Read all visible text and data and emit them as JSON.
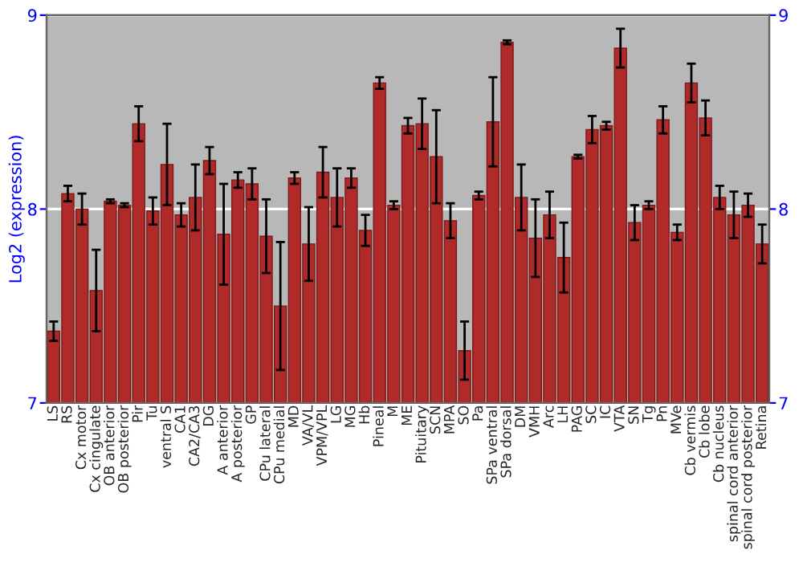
{
  "chart_data": {
    "type": "bar",
    "ylabel": "Log2 (expression)",
    "categories": [
      "LS",
      "RS",
      "Cx motor",
      "Cx cingulate",
      "OB anterior",
      "OB posterior",
      "Pir",
      "Tu",
      "ventral S",
      "CA1",
      "CA2/CA3",
      "DG",
      "A anterior",
      "A posterior",
      "GP",
      "CPu lateral",
      "CPu medial",
      "MD",
      "VA/VL",
      "VPM/VPL",
      "LG",
      "MG",
      "Hb",
      "Pineal",
      "M",
      "ME",
      "Pituitary",
      "SCN",
      "MPA",
      "SO",
      "Pa",
      "SPa ventral",
      "SPa dorsal",
      "DM",
      "VMH",
      "Arc",
      "LH",
      "PAG",
      "SC",
      "IC",
      "VTA",
      "SN",
      "Tg",
      "Pn",
      "MVe",
      "Cb vermis",
      "Cb lobe",
      "Cb nucleus",
      "spinal cord anterior",
      "spinal cord posterior",
      "Retina"
    ],
    "values": [
      7.37,
      8.08,
      8.0,
      7.58,
      8.04,
      8.02,
      8.44,
      7.99,
      8.23,
      7.97,
      8.06,
      8.25,
      7.87,
      8.15,
      8.13,
      7.86,
      7.5,
      8.16,
      7.82,
      8.19,
      8.06,
      8.16,
      7.89,
      8.65,
      8.02,
      8.43,
      8.44,
      8.27,
      7.94,
      7.27,
      8.07,
      8.45,
      8.86,
      8.06,
      7.85,
      7.97,
      7.75,
      8.27,
      8.41,
      8.43,
      8.83,
      7.93,
      8.02,
      8.46,
      7.88,
      8.65,
      8.47,
      8.06,
      7.97,
      8.02,
      7.82
    ],
    "errors": [
      0.05,
      0.04,
      0.08,
      0.21,
      0.01,
      0.01,
      0.09,
      0.07,
      0.21,
      0.06,
      0.17,
      0.07,
      0.26,
      0.04,
      0.08,
      0.19,
      0.33,
      0.03,
      0.19,
      0.13,
      0.15,
      0.05,
      0.08,
      0.03,
      0.02,
      0.04,
      0.13,
      0.24,
      0.09,
      0.15,
      0.02,
      0.23,
      0.01,
      0.17,
      0.2,
      0.12,
      0.18,
      0.01,
      0.07,
      0.02,
      0.1,
      0.09,
      0.02,
      0.07,
      0.04,
      0.1,
      0.09,
      0.06,
      0.12,
      0.06,
      0.1
    ],
    "color": "#b02a2a",
    "ylim": [
      7,
      9
    ],
    "yticks": [
      7,
      8,
      9
    ],
    "y2lim": [
      7,
      9
    ],
    "y2ticks": [
      7,
      8,
      9
    ],
    "grid": "y"
  }
}
